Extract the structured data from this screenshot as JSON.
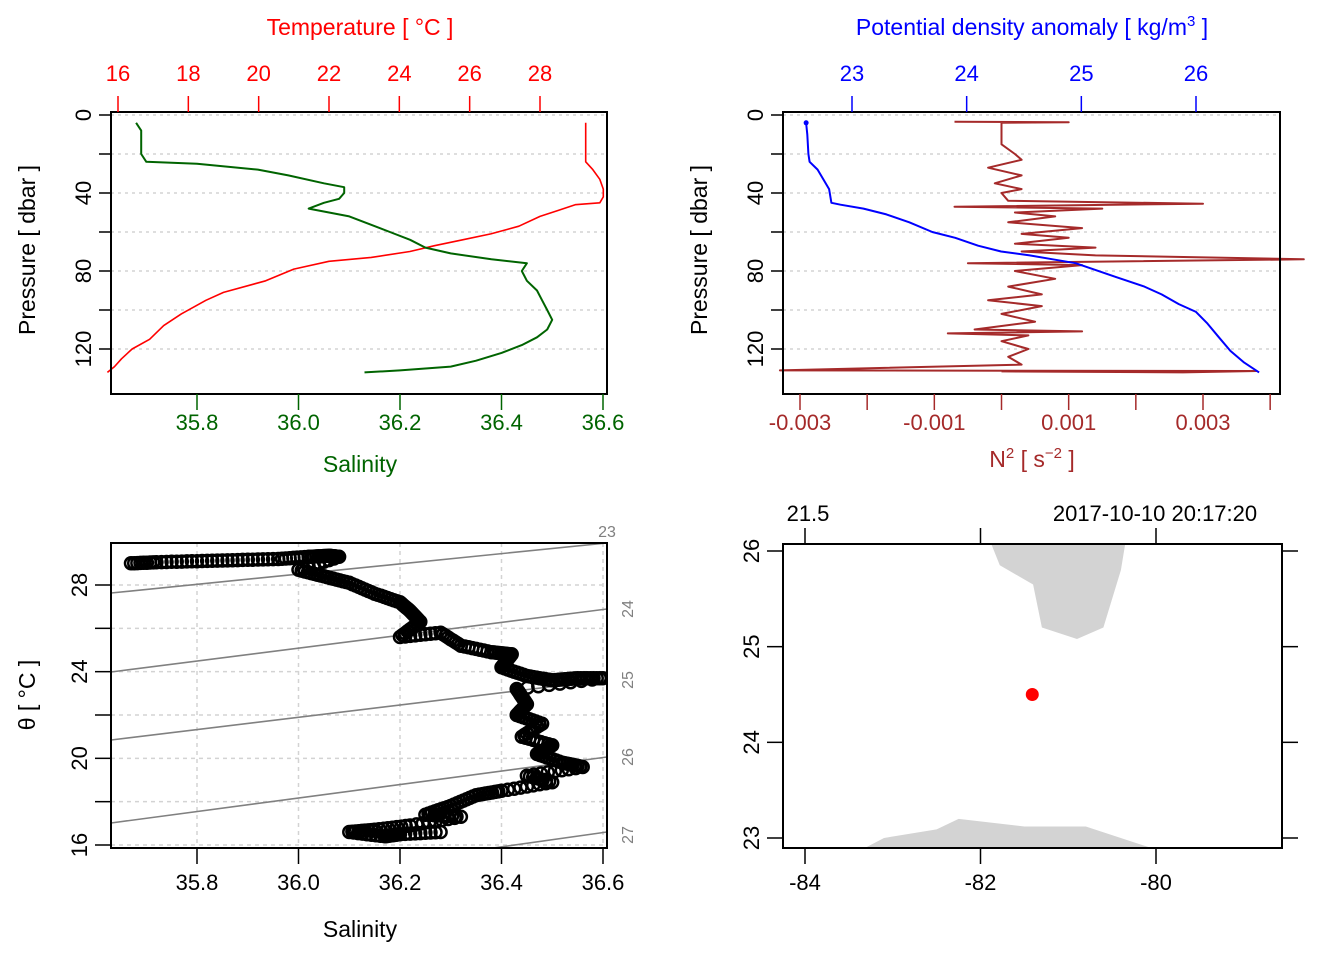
{
  "chart_data": [
    {
      "id": "profile-ts",
      "type": "line",
      "title": "",
      "ylabel": "Pressure [ dbar ]",
      "ylim": [
        137,
        0
      ],
      "yticks": [
        0,
        40,
        80,
        120
      ],
      "yminor": [
        20,
        60,
        100
      ],
      "grid": true,
      "top_axis": {
        "label": "Temperature [ °C ]",
        "color": "#ff0000",
        "ticks": [
          16,
          18,
          20,
          22,
          24,
          26,
          28
        ],
        "range": [
          15.8,
          29.9
        ]
      },
      "bottom_axis": {
        "label": "Salinity",
        "color": "#006400",
        "ticks": [
          35.8,
          36.0,
          36.2,
          36.4,
          36.6
        ],
        "tick_labels": [
          "35.8",
          "36.0",
          "36.2",
          "36.4",
          "36.6"
        ],
        "range": [
          35.63,
          36.61
        ]
      },
      "series": [
        {
          "name": "Temperature",
          "axis": "top",
          "color": "#ff0000",
          "points": [
            [
              29.3,
              4
            ],
            [
              29.3,
              10
            ],
            [
              29.3,
              20
            ],
            [
              29.3,
              24
            ],
            [
              29.5,
              28
            ],
            [
              29.7,
              33
            ],
            [
              29.8,
              38
            ],
            [
              29.8,
              42
            ],
            [
              29.7,
              45
            ],
            [
              29.0,
              46
            ],
            [
              28.5,
              49
            ],
            [
              28.0,
              52
            ],
            [
              27.4,
              57
            ],
            [
              26.6,
              61
            ],
            [
              25.8,
              64
            ],
            [
              25.0,
              67
            ],
            [
              24.3,
              70
            ],
            [
              23.2,
              73
            ],
            [
              22.0,
              75
            ],
            [
              21.0,
              79
            ],
            [
              20.2,
              85
            ],
            [
              19.0,
              91
            ],
            [
              18.5,
              95
            ],
            [
              17.8,
              102
            ],
            [
              17.3,
              108
            ],
            [
              16.9,
              115
            ],
            [
              16.4,
              120
            ],
            [
              16.1,
              125
            ],
            [
              15.9,
              129
            ],
            [
              15.7,
              132
            ]
          ]
        },
        {
          "name": "Salinity",
          "axis": "bottom",
          "color": "#006400",
          "points": [
            [
              35.68,
              4
            ],
            [
              35.69,
              8
            ],
            [
              35.69,
              15
            ],
            [
              35.69,
              20
            ],
            [
              35.7,
              24
            ],
            [
              35.8,
              25
            ],
            [
              35.92,
              28
            ],
            [
              35.98,
              31
            ],
            [
              36.05,
              35
            ],
            [
              36.09,
              37
            ],
            [
              36.09,
              40
            ],
            [
              36.08,
              43
            ],
            [
              36.05,
              45
            ],
            [
              36.02,
              48
            ],
            [
              36.1,
              52
            ],
            [
              36.14,
              56
            ],
            [
              36.18,
              60
            ],
            [
              36.22,
              64
            ],
            [
              36.25,
              68
            ],
            [
              36.3,
              71
            ],
            [
              36.38,
              74
            ],
            [
              36.45,
              76
            ],
            [
              36.44,
              80
            ],
            [
              36.45,
              85
            ],
            [
              36.47,
              90
            ],
            [
              36.48,
              95
            ],
            [
              36.49,
              100
            ],
            [
              36.5,
              105
            ],
            [
              36.49,
              110
            ],
            [
              36.47,
              114
            ],
            [
              36.44,
              118
            ],
            [
              36.4,
              122
            ],
            [
              36.35,
              126
            ],
            [
              36.3,
              129
            ],
            [
              36.2,
              131
            ],
            [
              36.13,
              132
            ]
          ]
        }
      ]
    },
    {
      "id": "profile-density",
      "type": "line",
      "ylabel": "Pressure [ dbar ]",
      "ylim": [
        137,
        0
      ],
      "yticks": [
        0,
        40,
        80,
        120
      ],
      "yminor": [
        20,
        60,
        100
      ],
      "grid": true,
      "top_axis": {
        "label": "Potential density anomaly [ kg/m³ ]",
        "label_main": "Potential density anomaly [ kg/m",
        "label_sup": "3",
        "label_end": " ]",
        "color": "#0000ff",
        "ticks": [
          23,
          24,
          25,
          26
        ],
        "range": [
          22.4,
          26.75
        ]
      },
      "bottom_axis": {
        "label": "N² [ s⁻² ]",
        "label_main": "N",
        "label_sup": "2",
        "label_mid": " [ s",
        "label_sup2": "−2",
        "label_end": " ]",
        "color": "#a52a2a",
        "ticks": [
          -0.003,
          -0.002,
          -0.001,
          0,
          0.001,
          0.002,
          0.003,
          0.004
        ],
        "labeled_ticks": [
          "-0.003",
          "-0.001",
          "0.001",
          "0.003"
        ],
        "range": [
          -0.00325,
          0.00415
        ]
      },
      "series": [
        {
          "name": "Potential density anomaly",
          "axis": "top",
          "color": "#0000ff",
          "points": [
            [
              22.6,
              4
            ],
            [
              22.61,
              10
            ],
            [
              22.62,
              20
            ],
            [
              22.63,
              24
            ],
            [
              22.7,
              28
            ],
            [
              22.75,
              33
            ],
            [
              22.8,
              38
            ],
            [
              22.82,
              45
            ],
            [
              22.9,
              46
            ],
            [
              23.1,
              48
            ],
            [
              23.3,
              51
            ],
            [
              23.5,
              55
            ],
            [
              23.7,
              60
            ],
            [
              23.9,
              63
            ],
            [
              24.1,
              67
            ],
            [
              24.3,
              70
            ],
            [
              24.55,
              72
            ],
            [
              24.75,
              74
            ],
            [
              24.95,
              76
            ],
            [
              25.1,
              79
            ],
            [
              25.3,
              83
            ],
            [
              25.55,
              88
            ],
            [
              25.7,
              92
            ],
            [
              25.85,
              97
            ],
            [
              26.0,
              101
            ],
            [
              26.1,
              107
            ],
            [
              26.2,
              114
            ],
            [
              26.3,
              121
            ],
            [
              26.42,
              127
            ],
            [
              26.55,
              132
            ]
          ]
        },
        {
          "name": "N2",
          "axis": "bottom",
          "color": "#a52a2a",
          "points": [
            [
              -0.0007,
              3.5
            ],
            [
              0.001,
              3.7
            ],
            [
              0,
              4
            ],
            [
              0,
              15
            ],
            [
              0.0002,
              20
            ],
            [
              0.0003,
              23
            ],
            [
              -0.0002,
              27
            ],
            [
              0.0003,
              31
            ],
            [
              -0.0001,
              35
            ],
            [
              0.0003,
              38
            ],
            [
              0,
              40
            ],
            [
              0.0001,
              44
            ],
            [
              0.003,
              45.5
            ],
            [
              -0.0007,
              47
            ],
            [
              0.0015,
              48
            ],
            [
              0.0002,
              50
            ],
            [
              0.0008,
              52
            ],
            [
              0.0001,
              55
            ],
            [
              0.0012,
              58
            ],
            [
              0.0003,
              61
            ],
            [
              0.001,
              63
            ],
            [
              0.0002,
              66
            ],
            [
              0.0014,
              68
            ],
            [
              0.0003,
              70
            ],
            [
              0.0014,
              72
            ],
            [
              0.0045,
              74
            ],
            [
              -0.0005,
              76
            ],
            [
              0.0012,
              77
            ],
            [
              0.0002,
              80
            ],
            [
              0.0008,
              84
            ],
            [
              0.0001,
              88
            ],
            [
              0.0006,
              92
            ],
            [
              -0.0002,
              95
            ],
            [
              0.0006,
              98
            ],
            [
              0,
              102
            ],
            [
              0.0005,
              106
            ],
            [
              -0.0004,
              110
            ],
            [
              0.0012,
              111
            ],
            [
              -0.0008,
              112
            ],
            [
              0.0004,
              113
            ],
            [
              0,
              116
            ],
            [
              0.0004,
              120
            ],
            [
              0.0001,
              124
            ],
            [
              0.0003,
              128
            ],
            [
              -0.0033,
              131
            ],
            [
              0.0038,
              131.3
            ],
            [
              0.0027,
              132
            ],
            [
              0,
              131.5
            ]
          ]
        }
      ]
    },
    {
      "id": "ts-diagram",
      "type": "scatter",
      "xlabel": "Salinity",
      "ylabel": "θ [ °C ]",
      "xlim": [
        35.63,
        36.61
      ],
      "ylim": [
        15.9,
        29.9
      ],
      "xticks": [
        35.8,
        36.0,
        36.2,
        36.4,
        36.6
      ],
      "xtick_labels": [
        "35.8",
        "36.0",
        "36.2",
        "36.4",
        "36.6"
      ],
      "yticks": [
        16,
        20,
        24,
        28
      ],
      "yminor": [
        18,
        22,
        26
      ],
      "grid": true,
      "isopycnals": {
        "color": "#808080",
        "labels": [
          "23",
          "24",
          "25",
          "26",
          "27"
        ]
      },
      "points": [
        [
          35.67,
          29.0
        ],
        [
          35.72,
          29.05
        ],
        [
          35.8,
          29.1
        ],
        [
          35.88,
          29.15
        ],
        [
          35.96,
          29.2
        ],
        [
          36.02,
          29.3
        ],
        [
          36.06,
          29.35
        ],
        [
          36.08,
          29.3
        ],
        [
          36.0,
          28.7
        ],
        [
          36.05,
          28.4
        ],
        [
          36.1,
          28.1
        ],
        [
          36.15,
          27.6
        ],
        [
          36.2,
          27.2
        ],
        [
          36.22,
          26.8
        ],
        [
          36.24,
          26.3
        ],
        [
          36.2,
          25.6
        ],
        [
          36.28,
          25.8
        ],
        [
          36.32,
          25.2
        ],
        [
          36.38,
          24.9
        ],
        [
          36.42,
          24.8
        ],
        [
          36.4,
          24.2
        ],
        [
          36.45,
          23.8
        ],
        [
          36.5,
          23.6
        ],
        [
          36.55,
          23.7
        ],
        [
          36.6,
          23.7
        ],
        [
          36.43,
          23.2
        ],
        [
          36.45,
          22.5
        ],
        [
          36.43,
          22.0
        ],
        [
          36.48,
          21.6
        ],
        [
          36.44,
          21.0
        ],
        [
          36.5,
          20.6
        ],
        [
          36.47,
          20.2
        ],
        [
          36.52,
          19.8
        ],
        [
          36.56,
          19.6
        ],
        [
          36.45,
          19.2
        ],
        [
          36.5,
          18.9
        ],
        [
          36.4,
          18.5
        ],
        [
          36.35,
          18.3
        ],
        [
          36.3,
          17.8
        ],
        [
          36.25,
          17.4
        ],
        [
          36.32,
          17.3
        ],
        [
          36.22,
          16.9
        ],
        [
          36.15,
          16.7
        ],
        [
          36.1,
          16.6
        ],
        [
          36.17,
          16.4
        ],
        [
          36.2,
          16.5
        ],
        [
          36.28,
          16.6
        ]
      ]
    },
    {
      "id": "location-map",
      "type": "scatter",
      "xlim": [
        -84.25,
        -78.55
      ],
      "ylim": [
        22.88,
        26.08
      ],
      "xticks": [
        -84,
        -82,
        -80
      ],
      "yticks": [
        23,
        24,
        25,
        26
      ],
      "top_labels": {
        "left": "21.5",
        "right": "2017-10-10 20:17:20"
      },
      "station": {
        "lon": -81.41,
        "lat": 24.5,
        "color": "#ff0000"
      },
      "land_color": "#d3d3d3",
      "land": [
        [
          [
            -81.88,
            26.08
          ],
          [
            -81.78,
            25.85
          ],
          [
            -81.4,
            25.65
          ],
          [
            -81.3,
            25.2
          ],
          [
            -80.9,
            25.08
          ],
          [
            -80.6,
            25.2
          ],
          [
            -80.4,
            25.8
          ],
          [
            -80.35,
            26.08
          ]
        ],
        [
          [
            -83.35,
            22.88
          ],
          [
            -83.1,
            23.0
          ],
          [
            -82.5,
            23.09
          ],
          [
            -82.25,
            23.2
          ],
          [
            -81.5,
            23.12
          ],
          [
            -80.8,
            23.12
          ],
          [
            -80.0,
            22.88
          ]
        ]
      ]
    }
  ]
}
